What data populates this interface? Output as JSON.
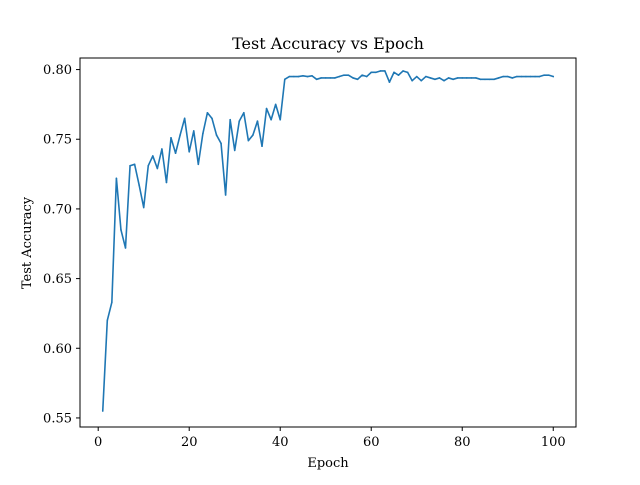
{
  "chart_data": {
    "type": "line",
    "title": "Test Accuracy vs Epoch",
    "xlabel": "Epoch",
    "ylabel": "Test Accuracy",
    "xlim": [
      -4,
      105
    ],
    "ylim": [
      0.5435,
      0.8083
    ],
    "grid": false,
    "xticks": [
      0,
      20,
      40,
      60,
      80,
      100
    ],
    "xtick_labels": [
      "0",
      "20",
      "40",
      "60",
      "80",
      "100"
    ],
    "yticks": [
      0.55,
      0.6,
      0.65,
      0.7,
      0.75,
      0.8
    ],
    "ytick_labels": [
      "0.55",
      "0.60",
      "0.65",
      "0.70",
      "0.75",
      "0.80"
    ],
    "series": [
      {
        "color": "#1f77b4",
        "x": [
          1,
          2,
          3,
          4,
          5,
          6,
          7,
          8,
          9,
          10,
          11,
          12,
          13,
          14,
          15,
          16,
          17,
          18,
          19,
          20,
          21,
          22,
          23,
          24,
          25,
          26,
          27,
          28,
          29,
          30,
          31,
          32,
          33,
          34,
          35,
          36,
          37,
          38,
          39,
          40,
          41,
          42,
          43,
          44,
          45,
          46,
          47,
          48,
          49,
          50,
          51,
          52,
          53,
          54,
          55,
          56,
          57,
          58,
          59,
          60,
          61,
          62,
          63,
          64,
          65,
          66,
          67,
          68,
          69,
          70,
          71,
          72,
          73,
          74,
          75,
          76,
          77,
          78,
          79,
          80,
          81,
          82,
          83,
          84,
          85,
          86,
          87,
          88,
          89,
          90,
          91,
          92,
          93,
          94,
          95,
          96,
          97,
          98,
          99,
          100
        ],
        "y": [
          0.555,
          0.62,
          0.633,
          0.722,
          0.685,
          0.672,
          0.731,
          0.732,
          0.717,
          0.701,
          0.731,
          0.738,
          0.729,
          0.743,
          0.719,
          0.751,
          0.74,
          0.753,
          0.765,
          0.741,
          0.756,
          0.732,
          0.754,
          0.769,
          0.765,
          0.753,
          0.747,
          0.71,
          0.764,
          0.742,
          0.763,
          0.769,
          0.749,
          0.753,
          0.763,
          0.745,
          0.772,
          0.764,
          0.775,
          0.764,
          0.793,
          0.795,
          0.795,
          0.795,
          0.7955,
          0.795,
          0.7955,
          0.793,
          0.794,
          0.794,
          0.794,
          0.794,
          0.795,
          0.796,
          0.796,
          0.794,
          0.793,
          0.796,
          0.795,
          0.798,
          0.798,
          0.799,
          0.799,
          0.791,
          0.798,
          0.796,
          0.799,
          0.798,
          0.792,
          0.795,
          0.792,
          0.795,
          0.794,
          0.793,
          0.794,
          0.792,
          0.794,
          0.793,
          0.794,
          0.794,
          0.794,
          0.794,
          0.794,
          0.793,
          0.793,
          0.793,
          0.793,
          0.794,
          0.795,
          0.795,
          0.794,
          0.795,
          0.795,
          0.795,
          0.795,
          0.795,
          0.795,
          0.796,
          0.796,
          0.795
        ]
      }
    ]
  }
}
